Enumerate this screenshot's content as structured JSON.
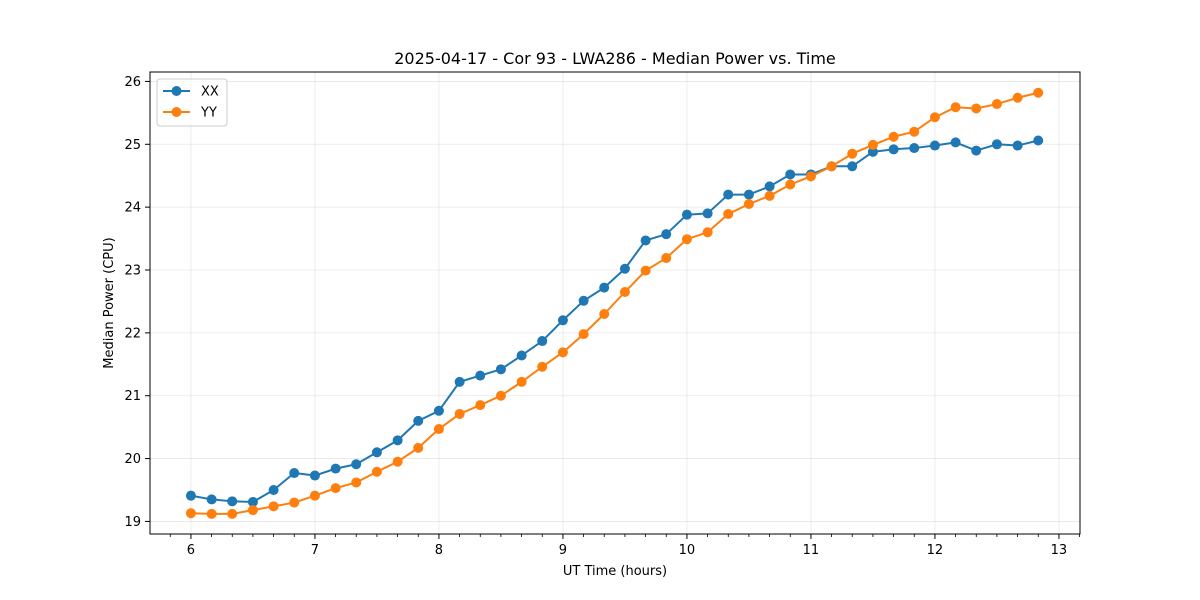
{
  "chart_data": {
    "type": "line",
    "title": "2025-04-17 - Cor 93 - LWA286 - Median Power vs. Time",
    "xlabel": "UT Time (hours)",
    "ylabel": "Median Power (CPU)",
    "xlim": [
      5.67,
      13.17
    ],
    "ylim": [
      18.8,
      26.15
    ],
    "xticks": [
      6,
      7,
      8,
      9,
      10,
      11,
      12,
      13
    ],
    "xtick_labels": [
      "6",
      "7",
      "8",
      "9",
      "10",
      "11",
      "12",
      "13"
    ],
    "yticks": [
      19,
      20,
      21,
      22,
      23,
      24,
      25,
      26
    ],
    "ytick_labels": [
      "19",
      "20",
      "21",
      "22",
      "23",
      "24",
      "25",
      "26"
    ],
    "grid": true,
    "legend_position": "top-left",
    "x": [
      6.0,
      6.167,
      6.333,
      6.5,
      6.667,
      6.833,
      7.0,
      7.167,
      7.333,
      7.5,
      7.667,
      7.833,
      8.0,
      8.167,
      8.333,
      8.5,
      8.667,
      8.833,
      9.0,
      9.167,
      9.333,
      9.5,
      9.667,
      9.833,
      10.0,
      10.167,
      10.333,
      10.5,
      10.667,
      10.833,
      11.0,
      11.167,
      11.333,
      11.5,
      11.667,
      11.833,
      12.0,
      12.167,
      12.333,
      12.5,
      12.667,
      12.833
    ],
    "series": [
      {
        "name": "XX",
        "color": "#1f77b4",
        "values": [
          19.41,
          19.35,
          19.32,
          19.31,
          19.5,
          19.77,
          19.73,
          19.84,
          19.91,
          20.1,
          20.29,
          20.6,
          20.76,
          21.22,
          21.32,
          21.42,
          21.64,
          21.87,
          22.2,
          22.51,
          22.72,
          23.02,
          23.47,
          23.57,
          23.88,
          23.9,
          24.2,
          24.2,
          24.33,
          24.52,
          24.52,
          24.65,
          24.65,
          24.88,
          24.92,
          24.94,
          24.98,
          25.03,
          24.9,
          25.0,
          24.98,
          25.06
        ]
      },
      {
        "name": "YY",
        "color": "#ff7f0e",
        "values": [
          19.13,
          19.12,
          19.12,
          19.18,
          19.24,
          19.3,
          19.41,
          19.53,
          19.62,
          19.79,
          19.95,
          20.17,
          20.47,
          20.71,
          20.85,
          21.0,
          21.22,
          21.46,
          21.69,
          21.98,
          22.3,
          22.65,
          22.99,
          23.19,
          23.49,
          23.6,
          23.89,
          24.05,
          24.18,
          24.36,
          24.49,
          24.65,
          24.85,
          24.99,
          25.12,
          25.2,
          25.43,
          25.59,
          25.57,
          25.64,
          25.74,
          25.82
        ]
      }
    ]
  }
}
